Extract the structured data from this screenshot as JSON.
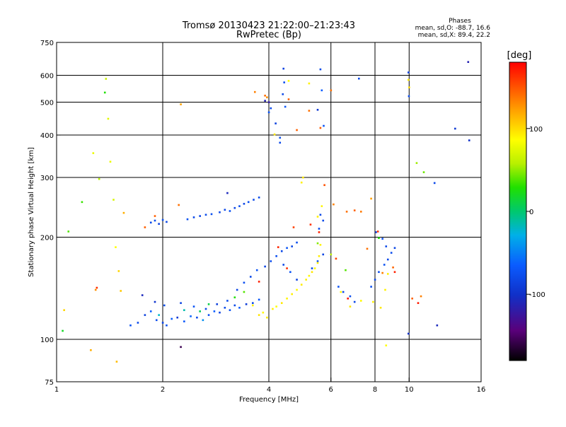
{
  "chart_data": {
    "type": "scatter",
    "title": "Tromsø 20130423 21:22:00–21:23:43",
    "subtitle": "RwPretec (Bp)",
    "xlabel": "Frequency [MHz]",
    "ylabel": "Stationary phase Virtual Height [km]",
    "x_scale": "log",
    "y_scale": "log",
    "xlim": [
      1,
      16
    ],
    "ylim": [
      75,
      750
    ],
    "x_ticks": [
      1,
      2,
      4,
      6,
      8,
      10,
      16
    ],
    "x_tick_labels": [
      "1",
      "2",
      "4",
      "6",
      "8",
      "10",
      "16"
    ],
    "y_ticks": [
      75,
      100,
      200,
      300,
      400,
      500,
      600,
      750
    ],
    "y_tick_labels": [
      "75",
      "100",
      "200",
      "300",
      "400",
      "500",
      "600",
      "750"
    ],
    "grid_x": [
      2,
      4,
      6,
      8,
      10
    ],
    "grid_y": [
      100,
      200,
      300,
      400,
      500,
      600
    ],
    "legend": {
      "title": "Phases",
      "lines": [
        "mean, sd,O: -88.7, 16.6",
        "mean, sd,X: 89.4, 22.2"
      ],
      "position": "top-right"
    },
    "colorbar": {
      "label": "[deg]",
      "range": [
        -180,
        180
      ],
      "ticks": [
        100,
        0,
        -100
      ],
      "tick_labels": [
        "100",
        "0",
        "-100"
      ],
      "colormap": "rainbow (black-purple-blue-cyan-green-yellow-orange-red)"
    },
    "series": [
      {
        "points": [
          [
            1.62,
            110,
            -95
          ],
          [
            1.7,
            112,
            -100
          ],
          [
            1.78,
            118,
            -105
          ],
          [
            1.85,
            121,
            -90
          ],
          [
            1.92,
            114,
            -98
          ],
          [
            2.0,
            112,
            -102
          ],
          [
            2.05,
            110,
            -96
          ],
          [
            2.12,
            115,
            -88
          ],
          [
            2.2,
            116,
            -110
          ],
          [
            2.3,
            113,
            -92
          ],
          [
            2.4,
            117,
            -85
          ],
          [
            2.5,
            116,
            -100
          ],
          [
            2.6,
            114,
            -60
          ],
          [
            2.7,
            118,
            -97
          ],
          [
            2.8,
            121,
            -90
          ],
          [
            2.9,
            120,
            -104
          ],
          [
            3.0,
            124,
            -99
          ],
          [
            3.1,
            122,
            -95
          ],
          [
            3.2,
            126,
            -101
          ],
          [
            3.3,
            124,
            -90
          ],
          [
            3.45,
            127,
            -108
          ],
          [
            3.6,
            128,
            -100
          ],
          [
            3.75,
            131,
            -93
          ],
          [
            1.75,
            135,
            -120
          ],
          [
            1.9,
            129,
            -112
          ],
          [
            2.02,
            126,
            -99
          ],
          [
            2.25,
            128,
            -103
          ],
          [
            2.45,
            125,
            -95
          ],
          [
            2.65,
            123,
            -100
          ],
          [
            2.85,
            127,
            -106
          ],
          [
            3.05,
            130,
            -98
          ],
          [
            3.25,
            140,
            -102
          ],
          [
            3.4,
            147,
            -97
          ],
          [
            3.55,
            153,
            -100
          ],
          [
            3.7,
            160,
            -95
          ],
          [
            3.9,
            164,
            -103
          ],
          [
            4.05,
            170,
            -99
          ],
          [
            4.2,
            176,
            -97
          ],
          [
            4.35,
            182,
            -101
          ],
          [
            4.5,
            186,
            -94
          ],
          [
            4.65,
            188,
            -102
          ],
          [
            4.8,
            193,
            -98
          ],
          [
            1.85,
            221,
            -100
          ],
          [
            1.9,
            224,
            -98
          ],
          [
            1.95,
            219,
            -103
          ],
          [
            2.0,
            225,
            -97
          ],
          [
            2.05,
            222,
            -101
          ],
          [
            2.35,
            226,
            -96
          ],
          [
            2.45,
            229,
            -100
          ],
          [
            2.55,
            231,
            -102
          ],
          [
            2.65,
            233,
            -99
          ],
          [
            2.75,
            234,
            -97
          ],
          [
            2.9,
            237,
            -101
          ],
          [
            3.0,
            241,
            -100
          ],
          [
            3.1,
            239,
            -96
          ],
          [
            3.2,
            244,
            -101
          ],
          [
            3.3,
            247,
            -98
          ],
          [
            3.4,
            251,
            -102
          ],
          [
            3.5,
            254,
            -97
          ],
          [
            3.62,
            258,
            -100
          ],
          [
            3.75,
            262,
            -99
          ],
          [
            4.0,
            467,
            -95
          ],
          [
            4.05,
            480,
            -100
          ],
          [
            4.18,
            433,
            -105
          ],
          [
            4.3,
            393,
            -98
          ],
          [
            4.45,
            485,
            -93
          ],
          [
            4.38,
            528,
            -101
          ],
          [
            4.42,
            572,
            -97
          ],
          [
            4.4,
            628,
            -104
          ],
          [
            5.6,
            625,
            -100
          ],
          [
            5.65,
            542,
            -90
          ],
          [
            5.5,
            475,
            -110
          ],
          [
            5.72,
            426,
            -95
          ],
          [
            7.2,
            587,
            -100
          ],
          [
            9.95,
            612,
            -105
          ],
          [
            9.98,
            521,
            -98
          ],
          [
            9.95,
            104,
            -115
          ],
          [
            11.8,
            289,
            -100
          ],
          [
            12.0,
            110,
            -120
          ],
          [
            13.5,
            418,
            -110
          ],
          [
            14.8,
            386,
            -115
          ],
          [
            14.7,
            657,
            -125
          ],
          [
            4.4,
            166,
            -100
          ],
          [
            4.6,
            158,
            -95
          ],
          [
            4.8,
            150,
            -105
          ],
          [
            5.3,
            162,
            -100
          ],
          [
            5.5,
            170,
            -97
          ],
          [
            5.7,
            178,
            -103
          ],
          [
            5.55,
            212,
            -98
          ],
          [
            5.7,
            224,
            -100
          ],
          [
            5.6,
            233,
            -101
          ],
          [
            6.3,
            143,
            -95
          ],
          [
            6.5,
            138,
            -100
          ],
          [
            6.8,
            134,
            -98
          ],
          [
            7.0,
            129,
            -102
          ],
          [
            7.8,
            143,
            -97
          ],
          [
            8.0,
            150,
            -101
          ],
          [
            8.2,
            158,
            -99
          ],
          [
            8.5,
            166,
            -96
          ],
          [
            8.7,
            172,
            -100
          ],
          [
            8.9,
            180,
            -98
          ],
          [
            9.1,
            186,
            -102
          ],
          [
            8.4,
            198,
            -97
          ],
          [
            8.6,
            188,
            -100
          ],
          [
            8.05,
            207,
            -110
          ],
          [
            3.05,
            270,
            -120
          ],
          [
            4.0,
            500,
            -130
          ],
          [
            3.9,
            505,
            -125
          ],
          [
            4.3,
            380,
            -100
          ],
          [
            3.6,
            126,
            100
          ],
          [
            3.75,
            118,
            105
          ],
          [
            3.85,
            120,
            98
          ],
          [
            3.95,
            116,
            102
          ],
          [
            4.1,
            123,
            100
          ],
          [
            4.2,
            125,
            95
          ],
          [
            4.35,
            128,
            103
          ],
          [
            4.5,
            132,
            99
          ],
          [
            4.65,
            136,
            101
          ],
          [
            4.8,
            140,
            97
          ],
          [
            4.95,
            145,
            102
          ],
          [
            5.1,
            150,
            100
          ],
          [
            5.2,
            154,
            98
          ],
          [
            5.3,
            158,
            104
          ],
          [
            5.4,
            162,
            96
          ],
          [
            5.5,
            168,
            100
          ],
          [
            5.55,
            176,
            102
          ],
          [
            5.6,
            190,
            99
          ],
          [
            5.5,
            230,
            101
          ],
          [
            5.65,
            247,
            98
          ],
          [
            4.95,
            290,
            100
          ],
          [
            5.0,
            300,
            102
          ],
          [
            4.15,
            402,
            103
          ],
          [
            4.55,
            578,
            95
          ],
          [
            5.2,
            568,
            100
          ],
          [
            10.0,
            553,
            108
          ],
          [
            9.95,
            582,
            103
          ],
          [
            6.4,
            138,
            98
          ],
          [
            6.8,
            125,
            104
          ],
          [
            7.3,
            130,
            97
          ],
          [
            7.9,
            129,
            100
          ],
          [
            8.3,
            124,
            103
          ],
          [
            8.55,
            140,
            99
          ],
          [
            8.7,
            156,
            101
          ],
          [
            8.6,
            96,
            95
          ],
          [
            3.4,
            138,
            40
          ],
          [
            3.2,
            133,
            30
          ],
          [
            2.7,
            127,
            10
          ],
          [
            2.55,
            121,
            5
          ],
          [
            1.95,
            118,
            -30
          ],
          [
            2.3,
            122,
            -20
          ],
          [
            5.5,
            192,
            50
          ],
          [
            6.0,
            178,
            60
          ],
          [
            6.6,
            160,
            40
          ],
          [
            8.2,
            199,
            30
          ],
          [
            10.5,
            331,
            55
          ],
          [
            11.0,
            311,
            45
          ],
          [
            1.04,
            106,
            20
          ],
          [
            1.05,
            122,
            110
          ],
          [
            1.08,
            208,
            40
          ],
          [
            1.25,
            93,
            125
          ],
          [
            1.29,
            140,
            135
          ],
          [
            1.32,
            297,
            60
          ],
          [
            1.37,
            534,
            30
          ],
          [
            1.38,
            586,
            70
          ],
          [
            1.4,
            447,
            80
          ],
          [
            1.42,
            334,
            85
          ],
          [
            1.45,
            258,
            75
          ],
          [
            1.47,
            187,
            95
          ],
          [
            1.5,
            159,
            110
          ],
          [
            1.52,
            139,
            115
          ],
          [
            1.48,
            86,
            120
          ],
          [
            1.55,
            236,
            125
          ],
          [
            1.18,
            254,
            35
          ],
          [
            1.27,
            354,
            85
          ],
          [
            2.25,
            493,
            130
          ],
          [
            2.22,
            249,
            145
          ],
          [
            1.9,
            231,
            150
          ],
          [
            1.78,
            214,
            150
          ],
          [
            3.65,
            536,
            140
          ],
          [
            3.9,
            523,
            145
          ],
          [
            3.95,
            517,
            135
          ],
          [
            4.55,
            510,
            150
          ],
          [
            4.8,
            414,
            150
          ],
          [
            5.2,
            472,
            145
          ],
          [
            5.75,
            285,
            155
          ],
          [
            5.6,
            420,
            152
          ],
          [
            6.0,
            542,
            145
          ],
          [
            6.1,
            250,
            140
          ],
          [
            6.65,
            238,
            145
          ],
          [
            7.0,
            240,
            150
          ],
          [
            7.3,
            238,
            142
          ],
          [
            7.8,
            260,
            130
          ],
          [
            7.6,
            185,
            145
          ],
          [
            8.4,
            157,
            140
          ],
          [
            9.0,
            163,
            148
          ],
          [
            10.2,
            132,
            150
          ],
          [
            10.8,
            134,
            140
          ],
          [
            2.25,
            95,
            -160
          ],
          [
            1.3,
            142,
            165
          ],
          [
            3.75,
            148,
            170
          ],
          [
            4.25,
            187,
            168
          ],
          [
            4.5,
            162,
            165
          ],
          [
            4.7,
            214,
            160
          ],
          [
            5.25,
            218,
            165
          ],
          [
            5.55,
            207,
            170
          ],
          [
            6.2,
            173,
            160
          ],
          [
            6.7,
            132,
            175
          ],
          [
            8.15,
            208,
            165
          ],
          [
            9.1,
            158,
            170
          ],
          [
            10.6,
            128,
            172
          ]
        ]
      }
    ]
  }
}
